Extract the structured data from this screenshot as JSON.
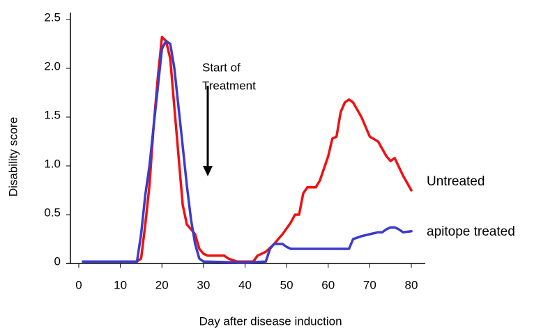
{
  "chart_data": {
    "type": "line",
    "xlabel": "Day after disease induction",
    "ylabel": "Disability score",
    "annotation": [
      "Start of",
      "Treatment"
    ],
    "xlim": [
      0,
      80
    ],
    "xticks": [
      0,
      10,
      20,
      30,
      40,
      50,
      60,
      70,
      80
    ],
    "ylim": [
      0,
      2.5
    ],
    "yticks": [
      0,
      0.5,
      {
        "value": 1,
        "label": "1.0"
      },
      1.5,
      {
        "value": 2,
        "label": "2.0"
      },
      2.5
    ],
    "series": [
      {
        "name": "Untreated",
        "color": "#ee1111",
        "x": [
          1,
          14,
          15,
          16,
          17,
          18,
          19,
          20,
          21,
          22,
          23,
          24,
          25,
          26,
          27,
          28,
          29,
          30,
          31,
          35,
          36,
          38,
          42,
          43,
          45,
          47,
          49,
          51,
          52,
          53,
          54,
          55,
          57,
          58,
          60,
          61,
          62,
          63,
          64,
          65,
          66,
          68,
          70,
          72,
          74,
          75,
          76,
          78,
          80
        ],
        "values": [
          0.02,
          0.02,
          0.05,
          0.4,
          0.8,
          1.4,
          1.9,
          2.32,
          2.28,
          2.1,
          1.6,
          1.1,
          0.6,
          0.4,
          0.35,
          0.3,
          0.15,
          0.1,
          0.08,
          0.08,
          0.05,
          0.02,
          0.02,
          0.08,
          0.12,
          0.2,
          0.3,
          0.42,
          0.5,
          0.5,
          0.72,
          0.78,
          0.78,
          0.85,
          1.1,
          1.28,
          1.3,
          1.55,
          1.65,
          1.68,
          1.65,
          1.5,
          1.3,
          1.25,
          1.1,
          1.05,
          1.08,
          0.9,
          0.75
        ]
      },
      {
        "name": "apitope treated",
        "color": "#3b3bcc",
        "x": [
          1,
          14,
          15,
          16,
          17,
          18,
          19,
          20,
          21,
          22,
          23,
          24,
          25,
          26,
          27,
          28,
          29,
          30,
          40,
          45,
          46,
          47,
          49,
          50,
          51,
          65,
          66,
          68,
          70,
          72,
          73,
          74,
          75,
          76,
          77,
          78,
          80
        ],
        "values": [
          0.02,
          0.02,
          0.3,
          0.7,
          1.0,
          1.4,
          1.8,
          2.2,
          2.28,
          2.25,
          2.0,
          1.6,
          1.2,
          0.8,
          0.45,
          0.2,
          0.05,
          0.02,
          0.01,
          0.02,
          0.15,
          0.2,
          0.2,
          0.17,
          0.15,
          0.15,
          0.25,
          0.28,
          0.3,
          0.32,
          0.32,
          0.35,
          0.37,
          0.37,
          0.35,
          0.32,
          0.33
        ]
      }
    ]
  }
}
